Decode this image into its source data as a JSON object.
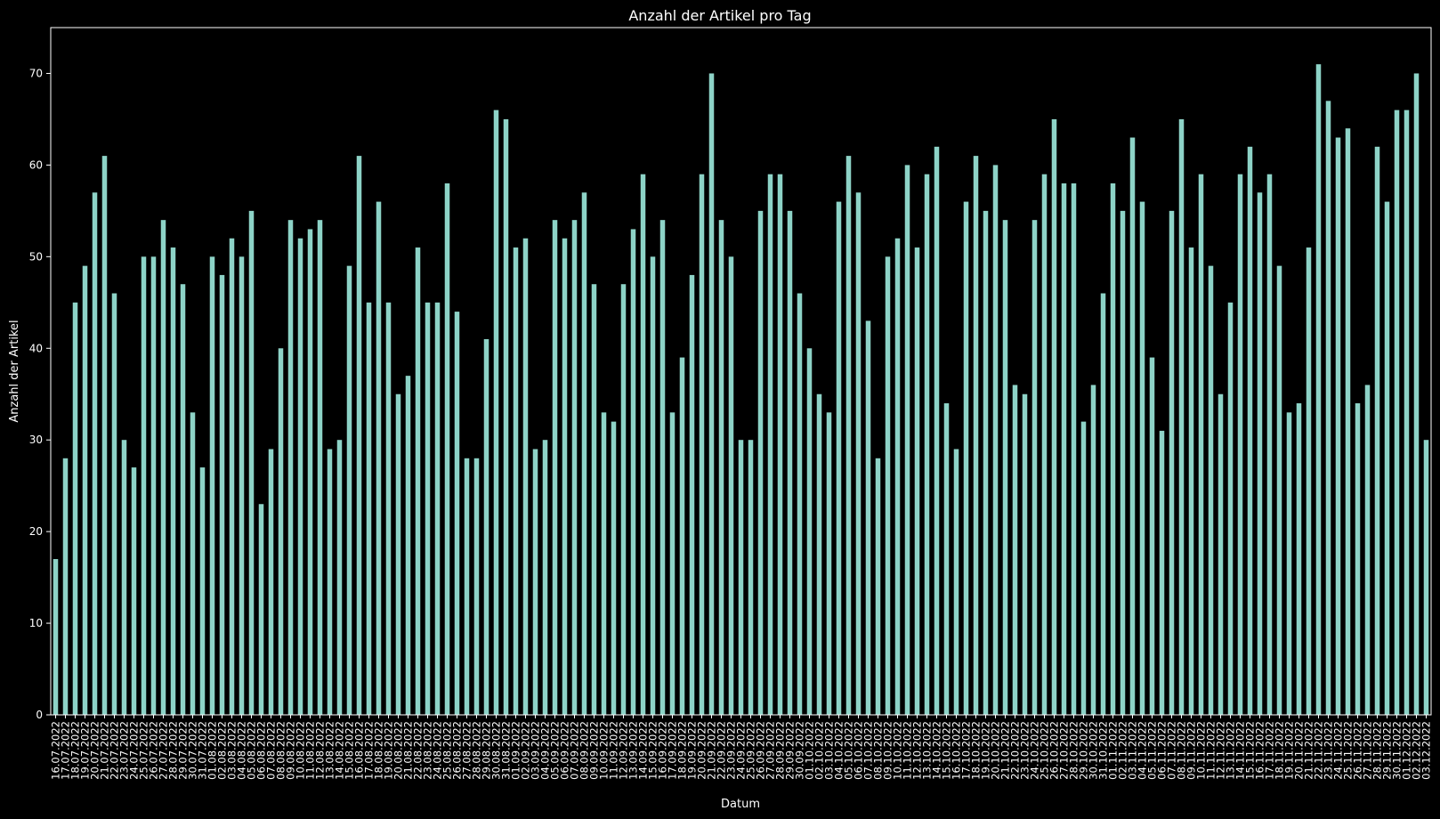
{
  "chart_data": {
    "type": "bar",
    "title": "Anzahl der Artikel pro Tag",
    "xlabel": "Datum",
    "ylabel": "Anzahl der Artikel",
    "ylim": [
      0,
      75
    ],
    "yticks": [
      0,
      10,
      20,
      30,
      40,
      50,
      60,
      70
    ],
    "grid": false,
    "colors": {
      "background": "#000000",
      "bar": "#8dd3c7",
      "text": "#ffffff",
      "axis": "#ffffff"
    },
    "categories": [
      "16.07.2022",
      "17.07.2022",
      "18.07.2022",
      "19.07.2022",
      "20.07.2022",
      "21.07.2022",
      "22.07.2022",
      "23.07.2022",
      "24.07.2022",
      "25.07.2022",
      "26.07.2022",
      "27.07.2022",
      "28.07.2022",
      "29.07.2022",
      "30.07.2022",
      "31.07.2022",
      "01.08.2022",
      "02.08.2022",
      "03.08.2022",
      "04.08.2022",
      "05.08.2022",
      "06.08.2022",
      "07.08.2022",
      "08.08.2022",
      "09.08.2022",
      "10.08.2022",
      "11.08.2022",
      "12.08.2022",
      "13.08.2022",
      "14.08.2022",
      "15.08.2022",
      "16.08.2022",
      "17.08.2022",
      "18.08.2022",
      "19.08.2022",
      "20.08.2022",
      "21.08.2022",
      "22.08.2022",
      "23.08.2022",
      "24.08.2022",
      "25.08.2022",
      "26.08.2022",
      "27.08.2022",
      "28.08.2022",
      "29.08.2022",
      "30.08.2022",
      "31.08.2022",
      "01.09.2022",
      "02.09.2022",
      "03.09.2022",
      "04.09.2022",
      "05.09.2022",
      "06.09.2022",
      "07.09.2022",
      "08.09.2022",
      "09.09.2022",
      "10.09.2022",
      "11.09.2022",
      "12.09.2022",
      "13.09.2022",
      "14.09.2022",
      "15.09.2022",
      "16.09.2022",
      "17.09.2022",
      "18.09.2022",
      "19.09.2022",
      "20.09.2022",
      "21.09.2022",
      "22.09.2022",
      "23.09.2022",
      "24.09.2022",
      "25.09.2022",
      "26.09.2022",
      "27.09.2022",
      "28.09.2022",
      "29.09.2022",
      "30.09.2022",
      "01.10.2022",
      "02.10.2022",
      "03.10.2022",
      "04.10.2022",
      "05.10.2022",
      "06.10.2022",
      "07.10.2022",
      "08.10.2022",
      "09.10.2022",
      "10.10.2022",
      "11.10.2022",
      "12.10.2022",
      "13.10.2022",
      "14.10.2022",
      "15.10.2022",
      "16.10.2022",
      "17.10.2022",
      "18.10.2022",
      "19.10.2022",
      "20.10.2022",
      "21.10.2022",
      "22.10.2022",
      "23.10.2022",
      "24.10.2022",
      "25.10.2022",
      "26.10.2022",
      "27.10.2022",
      "28.10.2022",
      "29.10.2022",
      "30.10.2022",
      "31.10.2022",
      "01.11.2022",
      "02.11.2022",
      "03.11.2022",
      "04.11.2022",
      "05.11.2022",
      "06.11.2022",
      "07.11.2022",
      "08.11.2022",
      "09.11.2022",
      "10.11.2022",
      "11.11.2022",
      "12.11.2022",
      "13.11.2022",
      "14.11.2022",
      "15.11.2022",
      "16.11.2022",
      "17.11.2022",
      "18.11.2022",
      "19.11.2022",
      "20.11.2022",
      "21.11.2022",
      "22.11.2022",
      "23.11.2022",
      "24.11.2022",
      "25.11.2022",
      "26.11.2022",
      "27.11.2022",
      "28.11.2022",
      "29.11.2022",
      "30.11.2022",
      "01.12.2022",
      "02.12.2022",
      "03.12.2022"
    ],
    "values": [
      17,
      28,
      45,
      49,
      57,
      61,
      46,
      30,
      27,
      50,
      50,
      54,
      51,
      47,
      33,
      27,
      50,
      48,
      52,
      50,
      55,
      23,
      29,
      40,
      54,
      52,
      53,
      54,
      29,
      30,
      49,
      61,
      45,
      56,
      45,
      35,
      37,
      51,
      45,
      45,
      58,
      44,
      28,
      28,
      41,
      66,
      65,
      51,
      52,
      29,
      30,
      54,
      52,
      54,
      57,
      47,
      33,
      32,
      47,
      53,
      59,
      50,
      54,
      33,
      39,
      48,
      59,
      70,
      54,
      50,
      30,
      30,
      55,
      59,
      59,
      55,
      46,
      40,
      35,
      33,
      56,
      61,
      57,
      43,
      28,
      50,
      52,
      60,
      51,
      59,
      62,
      34,
      29,
      56,
      61,
      55,
      60,
      54,
      36,
      35,
      54,
      59,
      65,
      58,
      58,
      32,
      36,
      46,
      58,
      55,
      63,
      56,
      39,
      31,
      55,
      65,
      51,
      59,
      49,
      35,
      45,
      59,
      62,
      57,
      59,
      49,
      33,
      34,
      51,
      71,
      67,
      63,
      64,
      34,
      36,
      62,
      56,
      66,
      66,
      70,
      30
    ]
  }
}
